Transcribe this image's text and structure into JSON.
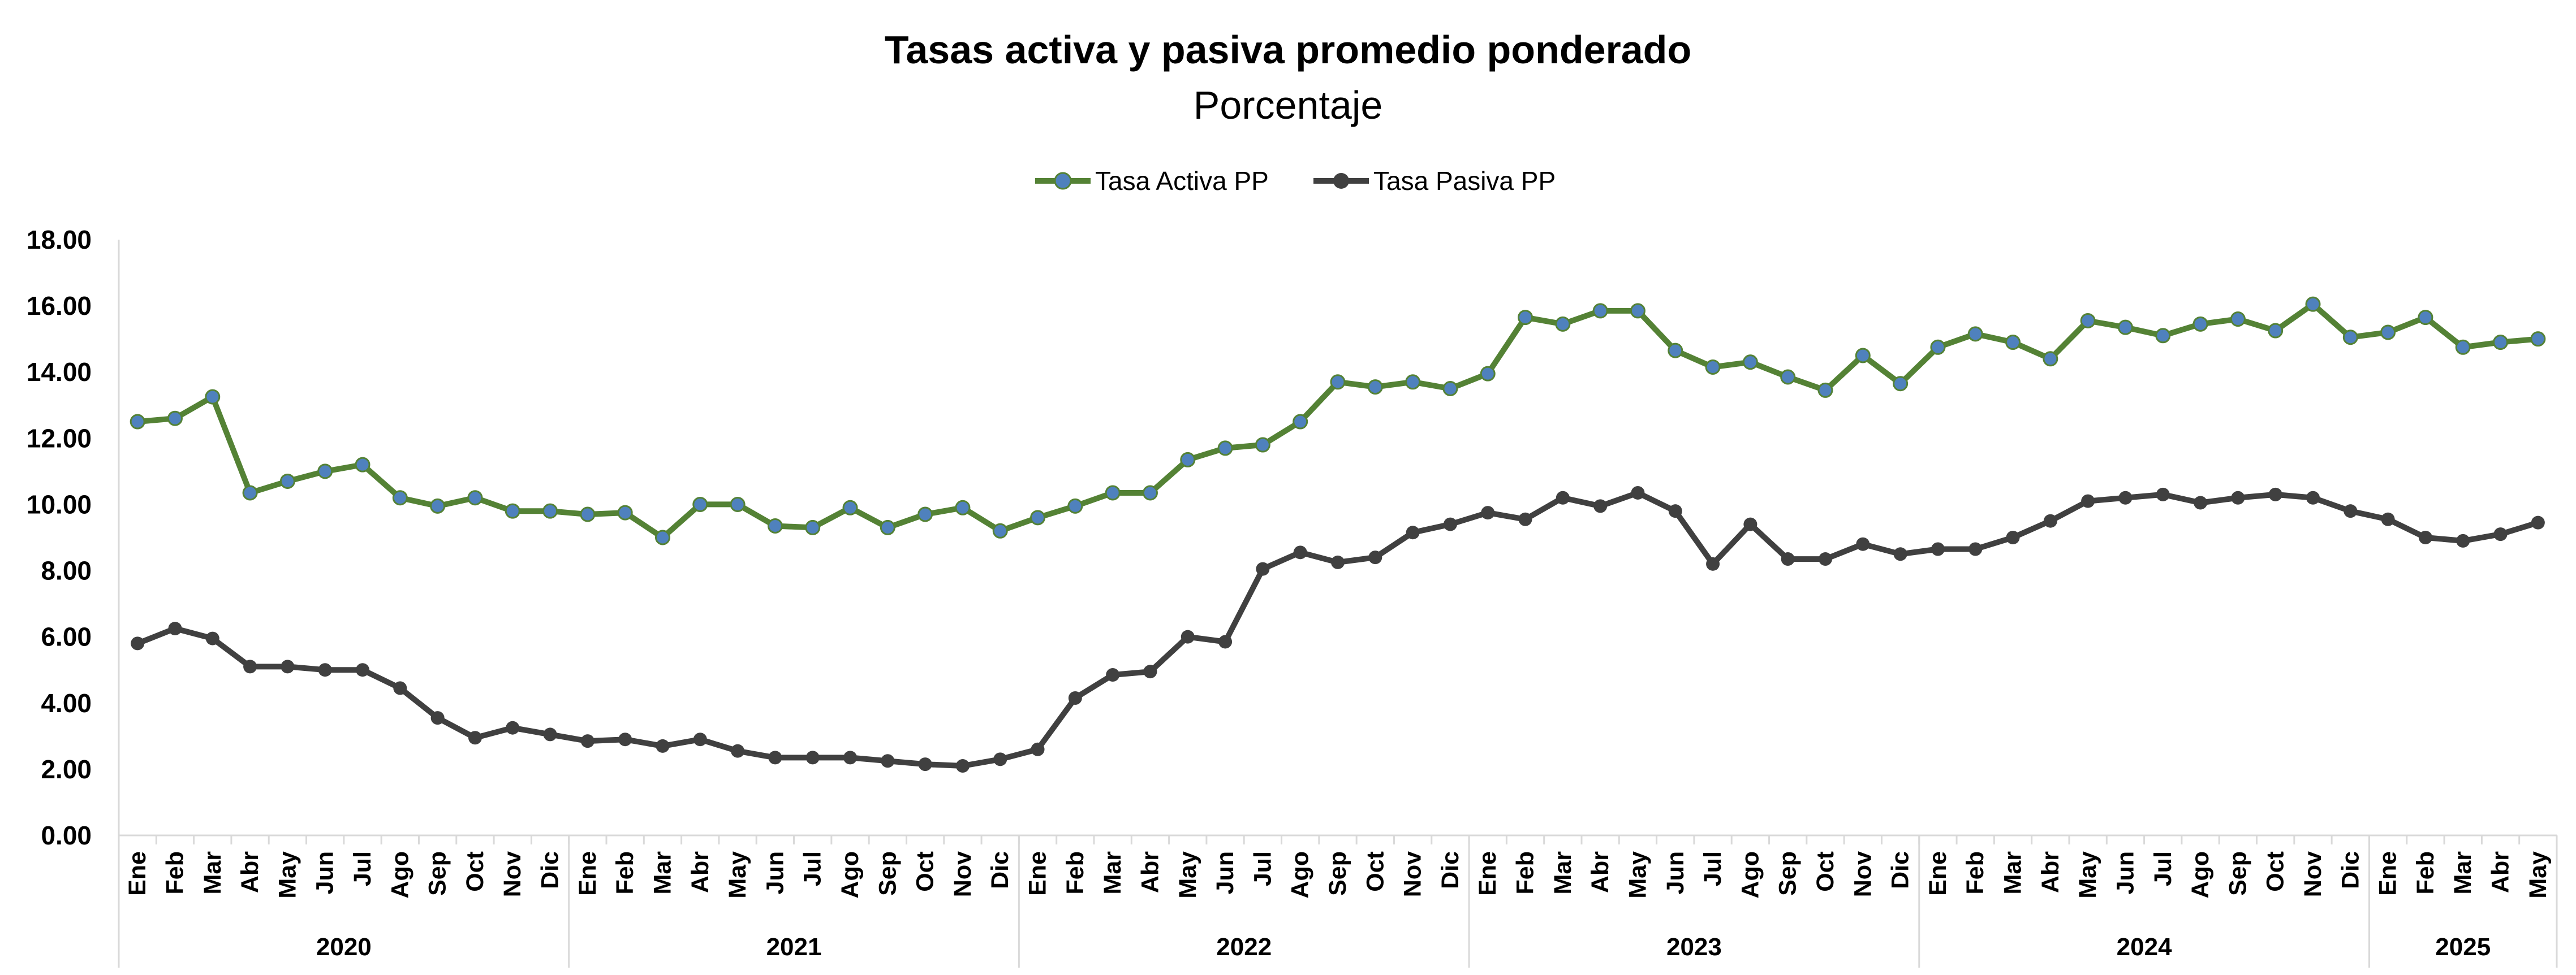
{
  "chart_data": {
    "type": "line",
    "title": "Tasas activa y pasiva promedio ponderado",
    "subtitle": "Porcentaje",
    "legend_position": "top-center",
    "grid": false,
    "ylim": [
      0,
      18
    ],
    "yticks": [
      "0.00",
      "2.00",
      "4.00",
      "6.00",
      "8.00",
      "10.00",
      "12.00",
      "14.00",
      "16.00",
      "18.00"
    ],
    "years": [
      {
        "label": "2020",
        "months": 12
      },
      {
        "label": "2021",
        "months": 12
      },
      {
        "label": "2022",
        "months": 12
      },
      {
        "label": "2023",
        "months": 12
      },
      {
        "label": "2024",
        "months": 12
      },
      {
        "label": "2025",
        "months": 5
      }
    ],
    "categories": [
      "Ene",
      "Feb",
      "Mar",
      "Abr",
      "May",
      "Jun",
      "Jul",
      "Ago",
      "Sep",
      "Oct",
      "Nov",
      "Dic",
      "Ene",
      "Feb",
      "Mar",
      "Abr",
      "May",
      "Jun",
      "Jul",
      "Ago",
      "Sep",
      "Oct",
      "Nov",
      "Dic",
      "Ene",
      "Feb",
      "Mar",
      "Abr",
      "May",
      "Jun",
      "Jul",
      "Ago",
      "Sep",
      "Oct",
      "Nov",
      "Dic",
      "Ene",
      "Feb",
      "Mar",
      "Abr",
      "May",
      "Jun",
      "Jul",
      "Ago",
      "Sep",
      "Oct",
      "Nov",
      "Dic",
      "Ene",
      "Feb",
      "Mar",
      "Abr",
      "May",
      "Jun",
      "Jul",
      "Ago",
      "Sep",
      "Oct",
      "Nov",
      "Dic",
      "Ene",
      "Feb",
      "Mar",
      "Abr",
      "May"
    ],
    "series": [
      {
        "name": "Tasa Activa PP",
        "line_color": "#548235",
        "marker_color": "#4F81BD",
        "values": [
          12.5,
          12.6,
          13.25,
          10.35,
          10.7,
          11.0,
          11.2,
          10.2,
          9.95,
          10.2,
          9.8,
          9.8,
          9.7,
          9.75,
          9.0,
          10.0,
          10.0,
          9.35,
          9.3,
          9.9,
          9.3,
          9.7,
          9.9,
          9.2,
          9.6,
          9.95,
          10.35,
          10.35,
          11.35,
          11.7,
          11.8,
          12.5,
          13.7,
          13.55,
          13.7,
          13.5,
          13.95,
          15.65,
          15.45,
          15.85,
          15.85,
          14.65,
          14.15,
          14.3,
          13.85,
          13.45,
          14.5,
          13.65,
          14.75,
          15.15,
          14.9,
          14.4,
          15.55,
          15.35,
          15.1,
          15.45,
          15.6,
          15.25,
          16.05,
          15.05,
          15.2,
          15.65,
          14.75,
          14.9,
          15.0
        ]
      },
      {
        "name": "Tasa Pasiva PP",
        "line_color": "#404040",
        "marker_color": "#404040",
        "values": [
          5.8,
          6.25,
          5.95,
          5.1,
          5.1,
          5.0,
          5.0,
          4.45,
          3.55,
          2.95,
          3.25,
          3.05,
          2.85,
          2.9,
          2.7,
          2.9,
          2.55,
          2.35,
          2.35,
          2.35,
          2.25,
          2.15,
          2.1,
          2.3,
          2.6,
          4.15,
          4.85,
          4.95,
          6.0,
          5.85,
          8.05,
          8.55,
          8.25,
          8.4,
          9.15,
          9.4,
          9.75,
          9.55,
          10.2,
          9.95,
          10.35,
          9.8,
          8.2,
          9.4,
          8.35,
          8.35,
          8.8,
          8.5,
          8.65,
          8.65,
          9.0,
          9.5,
          10.1,
          10.2,
          10.3,
          10.05,
          10.2,
          10.3,
          10.2,
          9.8,
          9.55,
          9.0,
          8.9,
          9.1,
          9.45
        ]
      }
    ]
  }
}
